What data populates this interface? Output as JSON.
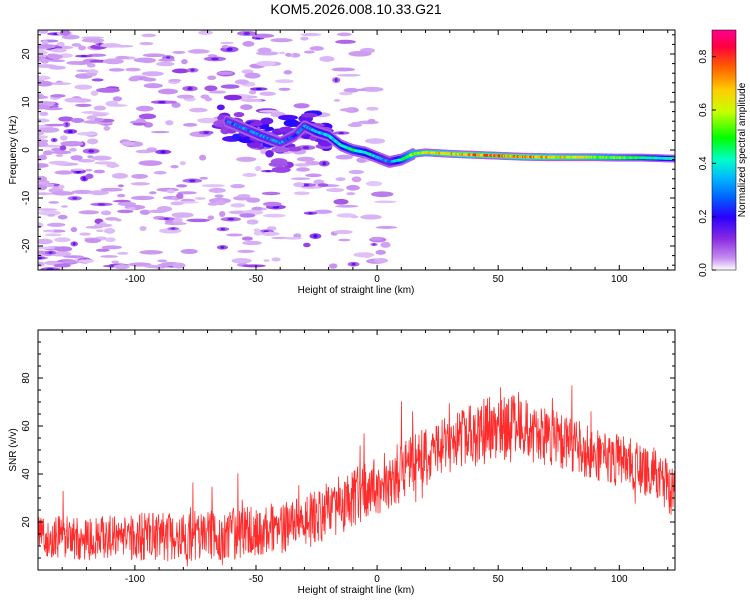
{
  "figure": {
    "title": "KOM5.2026.008.10.33.G21"
  },
  "chart_data": [
    {
      "type": "heatmap",
      "title": "KOM5.2026.008.10.33.G21",
      "xlabel": "Height of straight line (km)",
      "ylabel": "Frequency (Hz)",
      "xlim": [
        -140,
        123
      ],
      "ylim": [
        -25,
        25
      ],
      "x_ticks": [
        -100,
        -50,
        0,
        50,
        100
      ],
      "x_tick_labels": [
        "-100",
        "-50",
        "0",
        "50",
        "100"
      ],
      "y_ticks": [
        -20,
        -10,
        0,
        10,
        20
      ],
      "y_tick_labels": [
        "-20",
        "-10",
        "0",
        "10",
        "20"
      ],
      "colorbar": {
        "label": "Normalized spectral amplitude",
        "range": [
          0.0,
          0.9
        ],
        "ticks": [
          0.0,
          0.2,
          0.4,
          0.6,
          0.8
        ],
        "tick_labels": [
          "0.0",
          "0.2",
          "0.4",
          "0.6",
          "0.8"
        ],
        "colors": [
          "#ffffff",
          "#c58cf0",
          "#8a2be2",
          "#2a00ff",
          "#00b4ff",
          "#00ffc8",
          "#00ff00",
          "#c8ff00",
          "#ffcc00",
          "#ff5a00",
          "#ff0040",
          "#ff0090"
        ]
      },
      "ridge": {
        "x": [
          -62,
          -55,
          -48,
          -40,
          -34,
          -30,
          -25,
          -20,
          -15,
          -10,
          -5,
          0,
          5,
          10,
          15,
          20,
          30,
          40,
          50,
          60,
          70,
          80,
          90,
          100,
          110,
          123
        ],
        "y": [
          6,
          4.5,
          3,
          1.5,
          3,
          5,
          3.8,
          3,
          1,
          0,
          -0.5,
          -1.5,
          -2.5,
          -2,
          -0.8,
          -0.5,
          -0.8,
          -1,
          -1.2,
          -1.4,
          -1.5,
          -1.5,
          -1.5,
          -1.6,
          -1.6,
          -1.8
        ],
        "amplitude": [
          0.28,
          0.3,
          0.32,
          0.3,
          0.28,
          0.3,
          0.38,
          0.35,
          0.4,
          0.45,
          0.42,
          0.35,
          0.3,
          0.45,
          0.55,
          0.6,
          0.65,
          0.7,
          0.72,
          0.7,
          0.65,
          0.6,
          0.55,
          0.52,
          0.45,
          0.38
        ]
      }
    },
    {
      "type": "line",
      "xlabel": "Height of straight line (km)",
      "ylabel": "SNR (v/v)",
      "xlim": [
        -140,
        123
      ],
      "ylim": [
        0,
        100
      ],
      "x_ticks": [
        -100,
        -50,
        0,
        50,
        100
      ],
      "x_tick_labels": [
        "-100",
        "-50",
        "0",
        "50",
        "100"
      ],
      "y_ticks": [
        20,
        40,
        60,
        80
      ],
      "y_tick_labels": [
        "20",
        "40",
        "60",
        "80"
      ],
      "series": [
        {
          "name": "SNR",
          "color": "#ff2a2a",
          "trend_x": [
            -140,
            -120,
            -100,
            -80,
            -60,
            -45,
            -35,
            -25,
            -15,
            -5,
            5,
            15,
            25,
            35,
            45,
            55,
            65,
            75,
            85,
            95,
            105,
            115,
            123
          ],
          "trend_y": [
            14,
            13,
            14,
            14,
            15,
            17,
            18,
            22,
            27,
            32,
            38,
            44,
            50,
            55,
            58,
            60,
            57,
            54,
            50,
            47,
            44,
            40,
            32
          ],
          "noise_amplitude": [
            10,
            10,
            11,
            11,
            12,
            12,
            12,
            13,
            14,
            14,
            14,
            14,
            13,
            14,
            16,
            15,
            14,
            13,
            13,
            12,
            12,
            12,
            12
          ]
        }
      ]
    }
  ]
}
